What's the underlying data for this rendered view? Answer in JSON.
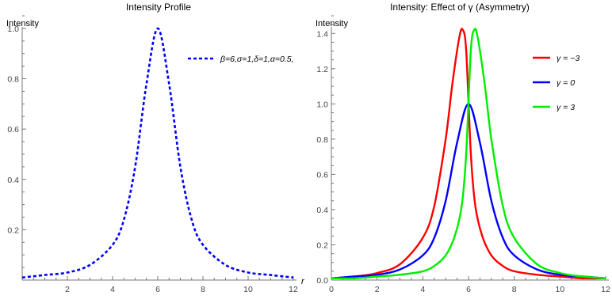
{
  "chart_data": [
    {
      "type": "line",
      "title": "Intensity Profile",
      "ylabel": "Intensity",
      "xlabel": "r",
      "xlim": [
        0,
        12
      ],
      "ylim": [
        0,
        1.05
      ],
      "xticks": [
        "2",
        "4",
        "6",
        "8",
        "10",
        "12"
      ],
      "yticks": [
        "0.2",
        "0.4",
        "0.6",
        "0.8",
        "1.0"
      ],
      "legend_position": "top-right",
      "series": [
        {
          "name": "β=6,σ=1,δ=1,α=0.5,",
          "color": "#0000ff",
          "style": "dashed",
          "x": [
            0,
            1,
            2,
            3,
            4,
            4.5,
            5,
            5.5,
            6,
            6.5,
            7,
            7.5,
            8,
            9,
            10,
            11,
            12
          ],
          "y": [
            0.01,
            0.02,
            0.03,
            0.06,
            0.14,
            0.24,
            0.45,
            0.78,
            1.0,
            0.78,
            0.45,
            0.24,
            0.14,
            0.06,
            0.03,
            0.02,
            0.01
          ]
        }
      ]
    },
    {
      "type": "line",
      "title": "Intensity: Effect of γ (Asymmetry)",
      "ylabel": "Intensity",
      "xlabel": "",
      "xlim": [
        0,
        12
      ],
      "ylim": [
        0,
        1.5
      ],
      "xticks": [
        "0",
        "2",
        "4",
        "6",
        "8",
        "10",
        "12"
      ],
      "yticks": [
        "0.0",
        "0.2",
        "0.4",
        "0.6",
        "0.8",
        "1.0",
        "1.2",
        "1.4"
      ],
      "legend_position": "top-right",
      "series": [
        {
          "name": "γ = −3",
          "color": "#ff0000",
          "x": [
            0,
            1,
            2,
            3,
            4,
            4.5,
            5,
            5.3,
            5.6,
            5.75,
            5.9,
            6.1,
            6.3,
            6.6,
            7,
            7.5,
            8,
            9,
            10,
            11,
            12
          ],
          "y": [
            0.01,
            0.02,
            0.04,
            0.09,
            0.24,
            0.42,
            0.8,
            1.12,
            1.38,
            1.42,
            1.3,
            0.72,
            0.42,
            0.25,
            0.14,
            0.08,
            0.05,
            0.03,
            0.02,
            0.01,
            0.01
          ]
        },
        {
          "name": "γ = 0",
          "color": "#0000ff",
          "x": [
            0,
            1,
            2,
            3,
            4,
            4.5,
            5,
            5.5,
            6,
            6.5,
            7,
            7.5,
            8,
            9,
            10,
            11,
            12
          ],
          "y": [
            0.01,
            0.02,
            0.03,
            0.06,
            0.14,
            0.24,
            0.45,
            0.78,
            1.0,
            0.78,
            0.45,
            0.24,
            0.14,
            0.06,
            0.03,
            0.02,
            0.01
          ]
        },
        {
          "name": "γ = 3",
          "color": "#00ee00",
          "x": [
            0,
            1,
            2,
            3,
            4,
            4.5,
            5,
            5.4,
            5.7,
            5.9,
            6.1,
            6.25,
            6.4,
            6.7,
            7,
            7.5,
            8,
            9,
            10,
            11,
            12
          ],
          "y": [
            0.01,
            0.01,
            0.02,
            0.03,
            0.05,
            0.08,
            0.14,
            0.25,
            0.42,
            0.72,
            1.3,
            1.42,
            1.38,
            1.12,
            0.8,
            0.42,
            0.24,
            0.09,
            0.04,
            0.02,
            0.01
          ]
        }
      ]
    }
  ]
}
